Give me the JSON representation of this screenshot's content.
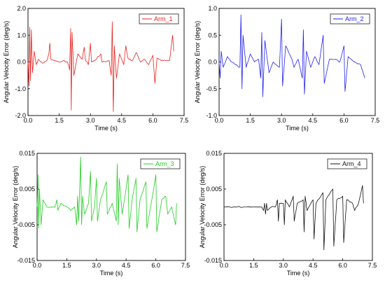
{
  "chart_data": [
    {
      "type": "line",
      "series": [
        {
          "name": "Arm_1",
          "color": "#e8211f",
          "line_style": "solid",
          "samples": [
            [
              0.0,
              0.0
            ],
            [
              0.05,
              -0.9
            ],
            [
              0.08,
              1.3
            ],
            [
              0.12,
              -0.7
            ],
            [
              0.16,
              1.2
            ],
            [
              0.22,
              -0.4
            ],
            [
              0.3,
              0.4
            ],
            [
              0.4,
              -0.1
            ],
            [
              0.5,
              0.1
            ],
            [
              0.7,
              -0.05
            ],
            [
              0.9,
              0.05
            ],
            [
              1.0,
              0.3
            ],
            [
              1.05,
              0.7
            ],
            [
              1.1,
              0.1
            ],
            [
              1.3,
              0.05
            ],
            [
              1.5,
              0.0
            ],
            [
              1.7,
              0.05
            ],
            [
              1.9,
              0.0
            ],
            [
              2.0,
              -0.3
            ],
            [
              2.05,
              1.25
            ],
            [
              2.08,
              -1.8
            ],
            [
              2.12,
              1.1
            ],
            [
              2.2,
              -0.5
            ],
            [
              2.4,
              0.3
            ],
            [
              2.6,
              0.1
            ],
            [
              2.7,
              0.55
            ],
            [
              2.75,
              0.1
            ],
            [
              2.9,
              -0.1
            ],
            [
              3.0,
              0.7
            ],
            [
              3.05,
              0.0
            ],
            [
              3.2,
              0.05
            ],
            [
              3.5,
              0.3
            ],
            [
              3.55,
              0.0
            ],
            [
              3.9,
              0.05
            ],
            [
              4.0,
              -0.5
            ],
            [
              4.05,
              1.5
            ],
            [
              4.1,
              -1.85
            ],
            [
              4.15,
              0.6
            ],
            [
              4.25,
              -0.6
            ],
            [
              4.4,
              0.3
            ],
            [
              4.6,
              -0.1
            ],
            [
              4.7,
              0.6
            ],
            [
              4.8,
              0.15
            ],
            [
              5.0,
              0.05
            ],
            [
              5.2,
              0.35
            ],
            [
              5.4,
              0.0
            ],
            [
              5.6,
              0.1
            ],
            [
              5.8,
              -0.1
            ],
            [
              6.0,
              0.25
            ],
            [
              6.1,
              -0.8
            ],
            [
              6.2,
              0.15
            ],
            [
              6.4,
              0.05
            ],
            [
              6.6,
              0.05
            ],
            [
              6.8,
              0.05
            ],
            [
              6.95,
              1.0
            ],
            [
              7.0,
              0.4
            ]
          ]
        }
      ],
      "xlabel": "Time (s)",
      "ylabel": "Angular Velocity Error (deg/s)",
      "xlim": [
        0,
        7.5
      ],
      "ylim": [
        -2.0,
        2.0
      ],
      "xticks": [
        0.0,
        1.5,
        3.0,
        4.5,
        6.0,
        7.5
      ],
      "yticks": [
        -2.0,
        -1.0,
        0.0,
        1.0,
        2.0
      ],
      "xtick_labels": [
        "0.0",
        "1.5",
        "3.0",
        "4.5",
        "6.0",
        "7.5"
      ],
      "ytick_labels": [
        "-2.0",
        "-1.0",
        "0.0",
        "1.0",
        "2.0"
      ],
      "legend_position": "top-right"
    },
    {
      "type": "line",
      "series": [
        {
          "name": "Arm_2",
          "color": "#2222ee",
          "line_style": "solid",
          "samples": [
            [
              0.0,
              0.0
            ],
            [
              0.05,
              -0.3
            ],
            [
              0.1,
              0.2
            ],
            [
              0.2,
              -0.1
            ],
            [
              0.4,
              0.1
            ],
            [
              0.6,
              0.0
            ],
            [
              0.8,
              -0.05
            ],
            [
              1.0,
              -0.1
            ],
            [
              1.05,
              0.88
            ],
            [
              1.1,
              -0.5
            ],
            [
              1.15,
              0.5
            ],
            [
              1.3,
              -0.1
            ],
            [
              1.5,
              0.15
            ],
            [
              1.7,
              0.0
            ],
            [
              1.9,
              0.05
            ],
            [
              2.0,
              -0.3
            ],
            [
              2.05,
              0.55
            ],
            [
              2.1,
              -0.65
            ],
            [
              2.2,
              0.4
            ],
            [
              2.4,
              -0.2
            ],
            [
              2.6,
              0.0
            ],
            [
              2.9,
              -0.1
            ],
            [
              3.0,
              0.8
            ],
            [
              3.05,
              -0.45
            ],
            [
              3.2,
              0.3
            ],
            [
              3.5,
              0.05
            ],
            [
              3.6,
              -0.1
            ],
            [
              3.8,
              0.05
            ],
            [
              4.0,
              -0.3
            ],
            [
              4.05,
              0.6
            ],
            [
              4.1,
              -0.6
            ],
            [
              4.2,
              0.2
            ],
            [
              4.4,
              -0.1
            ],
            [
              4.6,
              0.1
            ],
            [
              4.8,
              -0.05
            ],
            [
              5.0,
              0.5
            ],
            [
              5.05,
              -0.4
            ],
            [
              5.3,
              0.05
            ],
            [
              5.6,
              0.05
            ],
            [
              5.8,
              0.0
            ],
            [
              6.0,
              0.3
            ],
            [
              6.05,
              -0.55
            ],
            [
              6.2,
              0.1
            ],
            [
              6.5,
              0.0
            ],
            [
              6.8,
              -0.05
            ],
            [
              7.0,
              -0.3
            ]
          ]
        }
      ],
      "xlabel": "Time (s)",
      "ylabel": "Angular Velocity Error (deg/s)",
      "xlim": [
        0,
        7.5
      ],
      "ylim": [
        -1.0,
        1.0
      ],
      "xticks": [
        0.0,
        1.5,
        3.0,
        4.5,
        6.0,
        7.5
      ],
      "yticks": [
        -1.0,
        -0.5,
        0.0,
        0.5,
        1.0
      ],
      "xtick_labels": [
        "0.0",
        "1.5",
        "3.0",
        "4.5",
        "6.0",
        "7.5"
      ],
      "ytick_labels": [
        "-1.0",
        "-0.5",
        "0.0",
        "0.5",
        "1.0"
      ],
      "legend_position": "top-right"
    },
    {
      "type": "line",
      "series": [
        {
          "name": "Arm_3",
          "color": "#22cc22",
          "line_style": "solid",
          "samples": [
            [
              0.0,
              0.0
            ],
            [
              0.05,
              0.009
            ],
            [
              0.08,
              -0.006
            ],
            [
              0.12,
              0.005
            ],
            [
              0.2,
              -0.005
            ],
            [
              0.3,
              0.002
            ],
            [
              0.5,
              0.0
            ],
            [
              0.7,
              0.0
            ],
            [
              0.9,
              0.0
            ],
            [
              1.0,
              0.002
            ],
            [
              1.05,
              -0.001
            ],
            [
              1.2,
              0.001
            ],
            [
              1.5,
              0.0
            ],
            [
              1.7,
              -0.001
            ],
            [
              1.9,
              0.0
            ],
            [
              2.0,
              -0.005
            ],
            [
              2.05,
              0.003
            ],
            [
              2.1,
              -0.004
            ],
            [
              2.2,
              0.014
            ],
            [
              2.25,
              -0.005
            ],
            [
              2.3,
              0.003
            ],
            [
              2.4,
              -0.002
            ],
            [
              2.6,
              0.001
            ],
            [
              2.7,
              0.01
            ],
            [
              2.75,
              -0.004
            ],
            [
              2.9,
              0.0
            ],
            [
              3.0,
              0.008
            ],
            [
              3.05,
              -0.004
            ],
            [
              3.2,
              0.002
            ],
            [
              3.5,
              0.007
            ],
            [
              3.55,
              -0.002
            ],
            [
              3.8,
              0.001
            ],
            [
              4.0,
              -0.004
            ],
            [
              4.05,
              0.012
            ],
            [
              4.1,
              -0.005
            ],
            [
              4.15,
              0.008
            ],
            [
              4.3,
              -0.002
            ],
            [
              4.6,
              0.009
            ],
            [
              4.65,
              -0.006
            ],
            [
              4.8,
              0.002
            ],
            [
              5.0,
              0.008
            ],
            [
              5.05,
              -0.007
            ],
            [
              5.2,
              0.002
            ],
            [
              5.5,
              0.007
            ],
            [
              5.55,
              -0.006
            ],
            [
              5.8,
              0.002
            ],
            [
              6.0,
              0.009
            ],
            [
              6.05,
              -0.007
            ],
            [
              6.3,
              0.002
            ],
            [
              6.5,
              0.003
            ],
            [
              6.6,
              -0.002
            ],
            [
              6.8,
              0.0
            ],
            [
              7.0,
              -0.005
            ],
            [
              7.05,
              0.001
            ]
          ]
        }
      ],
      "xlabel": "Time (s)",
      "ylabel": "Angular Velocity Error (deg/s)",
      "xlim": [
        0,
        7.5
      ],
      "ylim": [
        -0.015,
        0.015
      ],
      "xticks": [
        0.0,
        1.5,
        3.0,
        4.5,
        6.0,
        7.5
      ],
      "yticks": [
        -0.015,
        -0.005,
        0.005,
        0.015
      ],
      "xtick_labels": [
        "0.0",
        "1.5",
        "3.0",
        "4.5",
        "6.0",
        "7.5"
      ],
      "ytick_labels": [
        "-0.015",
        "-0.005",
        "0.005",
        "0.015"
      ],
      "legend_position": "top-right"
    },
    {
      "type": "line",
      "series": [
        {
          "name": "Arm_4",
          "color": "#111111",
          "line_style": "solid",
          "samples": [
            [
              0.0,
              0.0
            ],
            [
              0.5,
              0.0
            ],
            [
              1.0,
              0.0
            ],
            [
              1.5,
              0.0
            ],
            [
              1.9,
              0.0
            ],
            [
              2.0,
              -0.001
            ],
            [
              2.05,
              0.001
            ],
            [
              2.1,
              -0.002
            ],
            [
              2.15,
              0.001
            ],
            [
              2.2,
              -0.001
            ],
            [
              2.4,
              0.0
            ],
            [
              2.6,
              0.0
            ],
            [
              2.7,
              0.002
            ],
            [
              2.75,
              -0.004
            ],
            [
              2.8,
              0.001
            ],
            [
              3.0,
              0.001
            ],
            [
              3.05,
              -0.005
            ],
            [
              3.1,
              0.002
            ],
            [
              3.3,
              0.0
            ],
            [
              3.5,
              0.003
            ],
            [
              3.55,
              -0.004
            ],
            [
              3.7,
              0.001
            ],
            [
              4.0,
              0.002
            ],
            [
              4.05,
              -0.007
            ],
            [
              4.1,
              0.003
            ],
            [
              4.2,
              -0.001
            ],
            [
              4.5,
              0.002
            ],
            [
              4.55,
              -0.009
            ],
            [
              4.65,
              0.001
            ],
            [
              5.0,
              0.004
            ],
            [
              5.05,
              -0.012
            ],
            [
              5.15,
              0.002
            ],
            [
              5.5,
              0.005
            ],
            [
              5.55,
              -0.011
            ],
            [
              5.7,
              0.002
            ],
            [
              6.0,
              0.003
            ],
            [
              6.05,
              -0.01
            ],
            [
              6.2,
              0.002
            ],
            [
              6.5,
              0.001
            ],
            [
              6.6,
              -0.001
            ],
            [
              6.8,
              0.001
            ],
            [
              7.0,
              0.006
            ],
            [
              7.05,
              0.001
            ]
          ]
        }
      ],
      "xlabel": "Time (s)",
      "ylabel": "Angular Velocity Error (deg/s)",
      "xlim": [
        0,
        7.5
      ],
      "ylim": [
        -0.015,
        0.015
      ],
      "xticks": [
        0.0,
        1.5,
        3.0,
        4.5,
        6.0,
        7.5
      ],
      "yticks": [
        -0.015,
        -0.005,
        0.005,
        0.015
      ],
      "xtick_labels": [
        "0.0",
        "1.5",
        "3.0",
        "4.5",
        "6.0",
        "7.5"
      ],
      "ytick_labels": [
        "-0.015",
        "-0.005",
        "0.005",
        "0.015"
      ],
      "legend_position": "top-right"
    }
  ]
}
